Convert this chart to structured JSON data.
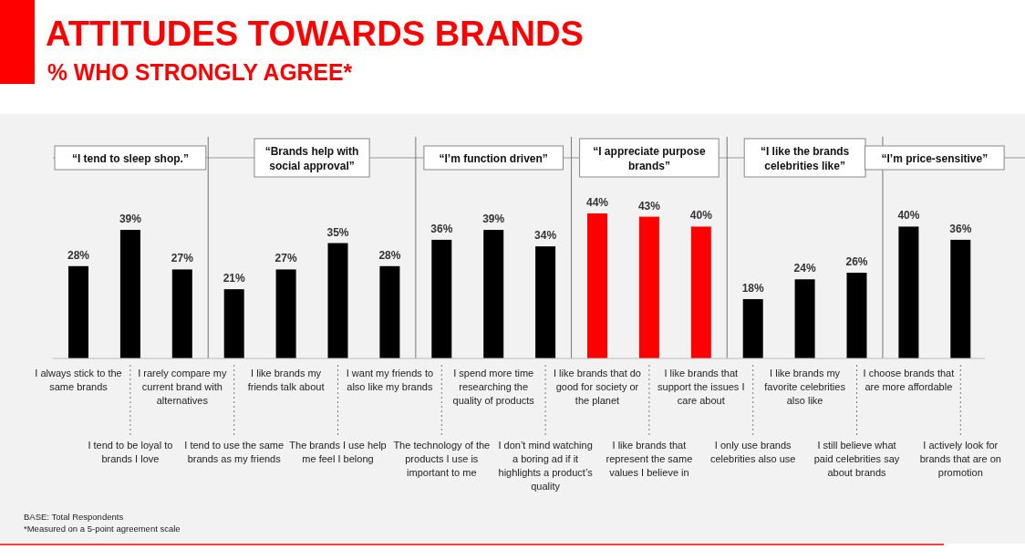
{
  "chart_data": {
    "type": "bar",
    "title": "ATTITUDES TOWARDS BRANDS",
    "subtitle": "% WHO STRONGLY AGREE*",
    "categories": [
      "I always stick to the same brands",
      "I tend to be loyal to brands I love",
      "I rarely compare my current brand with alternatives",
      "I tend to use the same brands as my friends",
      "I like brands my friends talk about",
      "The brands I use help me feel I belong",
      "I want my friends to also like my brands",
      "The technology of the products I use is important to me",
      "I spend more time researching the quality of products",
      "I don’t mind watching a boring ad if it highlights a product’s quality",
      "I like brands that do good for society or the planet",
      "I like brands that represent the same values I believe in",
      "I like brands that support the issues I care about",
      "I only use brands celebrities also use",
      "I like brands my favorite celebrities also like",
      "I still believe what paid celebrities say about brands",
      "I choose brands that are more affordable",
      "I actively look for brands that are on promotion"
    ],
    "values": [
      28,
      39,
      27,
      21,
      27,
      35,
      28,
      36,
      39,
      34,
      44,
      43,
      40,
      18,
      24,
      26,
      40,
      36
    ],
    "colors": [
      "#000000",
      "#000000",
      "#000000",
      "#000000",
      "#000000",
      "#000000",
      "#000000",
      "#000000",
      "#000000",
      "#000000",
      "#ff0000",
      "#ff0000",
      "#ff0000",
      "#000000",
      "#000000",
      "#000000",
      "#000000",
      "#000000"
    ],
    "value_labels": [
      "28%",
      "39%",
      "27%",
      "21%",
      "27%",
      "35%",
      "28%",
      "36%",
      "39%",
      "34%",
      "44%",
      "43%",
      "40%",
      "18%",
      "24%",
      "26%",
      "40%",
      "36%"
    ],
    "annotations": [
      "“I tend to sleep shop.”",
      "“Brands help with social approval”",
      "“I’m function driven”",
      "“I appreciate purpose brands”",
      "“I like the brands celebrities like”",
      "“I’m price-sensitive”",
      "BASE: Total Respondents",
      "*Measured on a 5-point agreement scale"
    ],
    "ylim": [
      0,
      44
    ],
    "tick_labels": "x"
  }
}
